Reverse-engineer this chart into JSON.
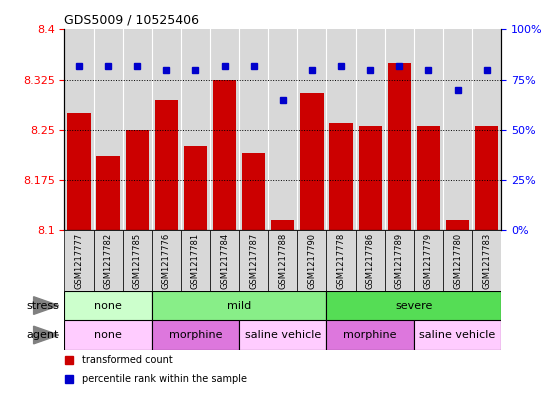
{
  "title": "GDS5009 / 10525406",
  "samples": [
    "GSM1217777",
    "GSM1217782",
    "GSM1217785",
    "GSM1217776",
    "GSM1217781",
    "GSM1217784",
    "GSM1217787",
    "GSM1217788",
    "GSM1217790",
    "GSM1217778",
    "GSM1217786",
    "GSM1217789",
    "GSM1217779",
    "GSM1217780",
    "GSM1217783"
  ],
  "bar_values": [
    8.275,
    8.21,
    8.25,
    8.295,
    8.225,
    8.325,
    8.215,
    8.115,
    8.305,
    8.26,
    8.255,
    8.35,
    8.255,
    8.115,
    8.255
  ],
  "dot_values": [
    82,
    82,
    82,
    80,
    80,
    82,
    82,
    65,
    80,
    82,
    80,
    82,
    80,
    70,
    80
  ],
  "ymin": 8.1,
  "ymax": 8.4,
  "yticks": [
    8.1,
    8.175,
    8.25,
    8.325,
    8.4
  ],
  "y2ticks": [
    0,
    25,
    50,
    75,
    100
  ],
  "y2labels": [
    "0%",
    "25%",
    "50%",
    "75%",
    "100%"
  ],
  "bar_color": "#cc0000",
  "dot_color": "#0000cc",
  "stress_groups": [
    {
      "label": "none",
      "start": 0,
      "end": 3,
      "color": "#ccffcc"
    },
    {
      "label": "mild",
      "start": 3,
      "end": 9,
      "color": "#88ee88"
    },
    {
      "label": "severe",
      "start": 9,
      "end": 15,
      "color": "#55dd55"
    }
  ],
  "agent_display": [
    {
      "label": "none",
      "start": 0,
      "end": 3,
      "color": "#ffccff"
    },
    {
      "label": "morphine",
      "start": 3,
      "end": 6,
      "color": "#dd77dd"
    },
    {
      "label": "saline vehicle",
      "start": 6,
      "end": 9,
      "color": "#ffccff"
    },
    {
      "label": "morphine",
      "start": 9,
      "end": 12,
      "color": "#dd77dd"
    },
    {
      "label": "saline vehicle",
      "start": 12,
      "end": 15,
      "color": "#ffccff"
    }
  ],
  "legend_items": [
    {
      "label": "transformed count",
      "color": "#cc0000"
    },
    {
      "label": "percentile rank within the sample",
      "color": "#0000cc"
    }
  ],
  "bar_width": 0.8,
  "col_bg": "#d8d8d8"
}
